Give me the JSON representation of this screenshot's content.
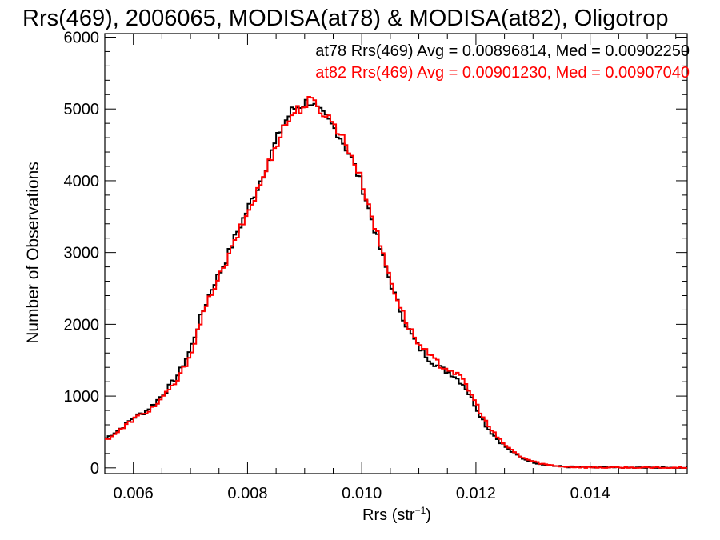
{
  "chart_data": {
    "type": "line",
    "title": "Rrs(469), 2006065, MODISA(at78) & MODISA(at82), Oligotrop",
    "xlabel_main": "Rrs (str",
    "xlabel_sup": "−1",
    "xlabel_tail": ")",
    "ylabel": "Number of Observations",
    "xlim": [
      0.0055,
      0.0157
    ],
    "ylim": [
      -80,
      6050
    ],
    "x_ticks": [
      0.006,
      0.008,
      0.01,
      0.012,
      0.014
    ],
    "x_tick_labels": [
      "0.006",
      "0.008",
      "0.010",
      "0.012",
      "0.014"
    ],
    "y_ticks": [
      0,
      1000,
      2000,
      3000,
      4000,
      5000,
      6000
    ],
    "y_tick_labels": [
      "0",
      "1000",
      "2000",
      "3000",
      "4000",
      "5000",
      "6000"
    ],
    "grid": false,
    "legend_position": "top-right",
    "bin_width": 5e-05,
    "series": [
      {
        "name": "at78",
        "legend_text": "at78 Rrs(469) Avg = 0.00896814, Med = 0.00902250",
        "color": "#000000",
        "x": [
          0.0055,
          0.0058,
          0.006,
          0.0062,
          0.0064,
          0.0066,
          0.0068,
          0.007,
          0.0072,
          0.0074,
          0.0076,
          0.0078,
          0.008,
          0.0082,
          0.0084,
          0.0086,
          0.0088,
          0.009,
          0.0091,
          0.0092,
          0.0094,
          0.0096,
          0.0098,
          0.01,
          0.0102,
          0.0104,
          0.0106,
          0.0108,
          0.011,
          0.0112,
          0.0114,
          0.0116,
          0.0118,
          0.012,
          0.0122,
          0.0124,
          0.0126,
          0.0128,
          0.013,
          0.0132,
          0.0134,
          0.0136,
          0.014,
          0.0145,
          0.015,
          0.0157
        ],
        "y": [
          400,
          560,
          700,
          780,
          920,
          1100,
          1320,
          1650,
          2150,
          2550,
          2850,
          3250,
          3600,
          3950,
          4350,
          4750,
          5000,
          5080,
          5120,
          5000,
          4850,
          4650,
          4350,
          3950,
          3400,
          2850,
          2350,
          1950,
          1680,
          1500,
          1380,
          1300,
          1150,
          850,
          560,
          380,
          240,
          140,
          80,
          45,
          25,
          15,
          6,
          3,
          1,
          0
        ]
      },
      {
        "name": "at82",
        "legend_text": "at82 Rrs(469) Avg = 0.00901230, Med = 0.00907040",
        "color": "#ff0000",
        "x": [
          0.0055,
          0.0058,
          0.006,
          0.0062,
          0.0064,
          0.0066,
          0.0068,
          0.007,
          0.0072,
          0.0074,
          0.0076,
          0.0078,
          0.008,
          0.0082,
          0.0084,
          0.0086,
          0.0088,
          0.009,
          0.0091,
          0.0092,
          0.0094,
          0.0096,
          0.0098,
          0.01,
          0.0102,
          0.0104,
          0.0106,
          0.0108,
          0.011,
          0.0112,
          0.0114,
          0.0116,
          0.0118,
          0.012,
          0.0122,
          0.0124,
          0.0126,
          0.0128,
          0.013,
          0.0132,
          0.0134,
          0.0136,
          0.014,
          0.0145,
          0.015,
          0.0157
        ],
        "y": [
          380,
          540,
          680,
          760,
          880,
          1050,
          1250,
          1580,
          2080,
          2500,
          2800,
          3200,
          3550,
          3900,
          4300,
          4700,
          4950,
          5050,
          5120,
          5050,
          4900,
          4700,
          4400,
          4000,
          3450,
          2900,
          2400,
          2000,
          1720,
          1550,
          1420,
          1350,
          1200,
          900,
          600,
          400,
          260,
          150,
          90,
          50,
          28,
          16,
          7,
          3,
          1,
          0
        ]
      }
    ]
  }
}
